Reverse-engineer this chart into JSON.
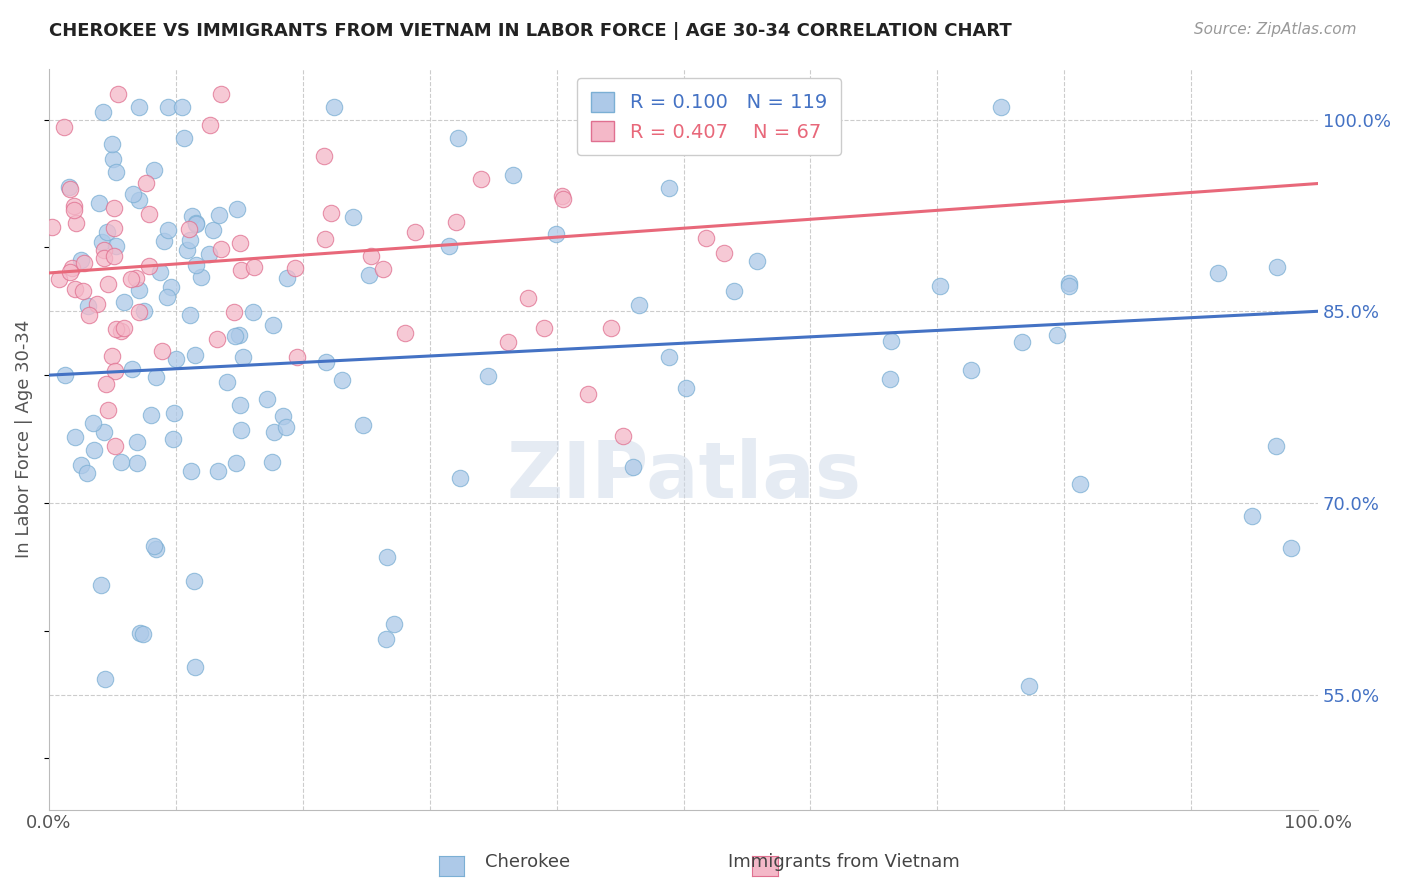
{
  "title": "CHEROKEE VS IMMIGRANTS FROM VIETNAM IN LABOR FORCE | AGE 30-34 CORRELATION CHART",
  "source": "Source: ZipAtlas.com",
  "ylabel": "In Labor Force | Age 30-34",
  "xlim": [
    0.0,
    1.0
  ],
  "ylim": [
    0.46,
    1.04
  ],
  "yticks_right": [
    0.55,
    0.7,
    0.85,
    1.0
  ],
  "ytick_right_labels": [
    "55.0%",
    "70.0%",
    "85.0%",
    "100.0%"
  ],
  "grid_color": "#cccccc",
  "background_color": "#ffffff",
  "cherokee_color": "#adc9e8",
  "cherokee_edge": "#7bafd4",
  "vietnam_color": "#f4b8c8",
  "vietnam_edge": "#e07090",
  "trend_blue": "#4472c4",
  "trend_pink": "#e8687a",
  "legend_r_blue": "0.100",
  "legend_n_blue": "119",
  "legend_r_pink": "0.407",
  "legend_n_pink": "67",
  "legend_label_blue": "Cherokee",
  "legend_label_pink": "Immigrants from Vietnam",
  "watermark": "ZIPatlas",
  "blue_line_x0": 0.0,
  "blue_line_y0": 0.8,
  "blue_line_x1": 1.0,
  "blue_line_y1": 0.85,
  "pink_line_x0": 0.0,
  "pink_line_y0": 0.88,
  "pink_line_x1": 1.0,
  "pink_line_y1": 0.95
}
